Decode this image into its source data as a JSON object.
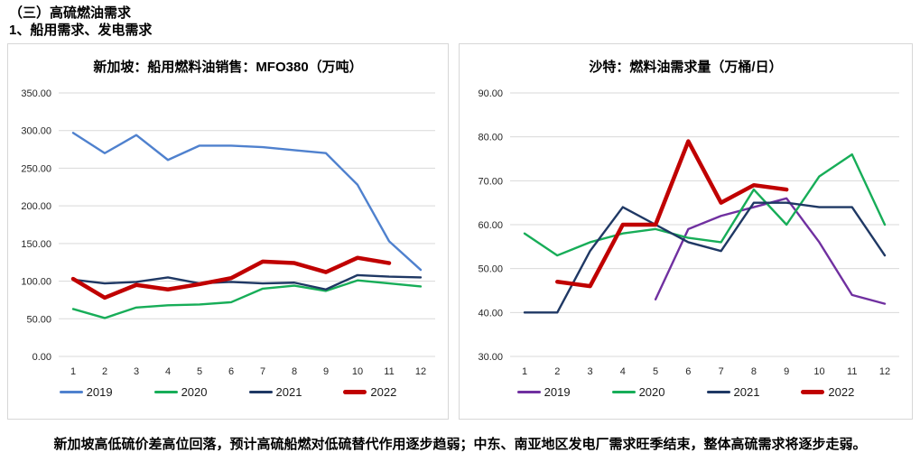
{
  "page": {
    "heading1": "（三）高硫燃油需求",
    "heading2": "1、船用需求、发电需求",
    "footer": "新加坡高低硫价差高位回落，预计高硫船燃对低硫替代作用逐步趋弱；中东、南亚地区发电厂需求旺季结束，整体高硫需求将逐步走弱。"
  },
  "colors": {
    "blue_2019_left": "#4F81CE",
    "purple_2019_right": "#7030A0",
    "green_2020": "#17AD58",
    "navy_2021": "#1F3864",
    "red_2022": "#C00000",
    "grid": "#d9d9d9"
  },
  "chart_data": [
    {
      "type": "line",
      "title": "新加坡：船用燃料油销售：MFO380（万吨）",
      "xlabel": "",
      "ylabel": "",
      "x": [
        1,
        2,
        3,
        4,
        5,
        6,
        7,
        8,
        9,
        10,
        11,
        12
      ],
      "ylim": [
        0,
        350
      ],
      "ystep": 50,
      "ytick_decimals": 2,
      "grid": true,
      "legend_position": "bottom",
      "series": [
        {
          "name": "2019",
          "color": "#4F81CE",
          "thick": false,
          "values": [
            297,
            270,
            294,
            261,
            280,
            280,
            278,
            274,
            270,
            228,
            153,
            115
          ]
        },
        {
          "name": "2020",
          "color": "#17AD58",
          "thick": false,
          "values": [
            63,
            51,
            65,
            68,
            69,
            72,
            90,
            94,
            87,
            101,
            97,
            93
          ]
        },
        {
          "name": "2021",
          "color": "#1F3864",
          "thick": false,
          "values": [
            102,
            97,
            99,
            105,
            97,
            99,
            97,
            98,
            89,
            108,
            106,
            105
          ]
        },
        {
          "name": "2022",
          "color": "#C00000",
          "thick": true,
          "values": [
            103,
            78,
            95,
            89,
            96,
            104,
            126,
            124,
            112,
            131,
            124,
            null
          ]
        }
      ]
    },
    {
      "type": "line",
      "title": "沙特：燃料油需求量（万桶/日）",
      "xlabel": "",
      "ylabel": "",
      "x": [
        1,
        2,
        3,
        4,
        5,
        6,
        7,
        8,
        9,
        10,
        11,
        12
      ],
      "ylim": [
        30,
        90
      ],
      "ystep": 10,
      "ytick_decimals": 2,
      "grid": true,
      "legend_position": "bottom",
      "series": [
        {
          "name": "2019",
          "color": "#7030A0",
          "thick": false,
          "values": [
            null,
            null,
            null,
            null,
            43,
            59,
            62,
            64,
            66,
            56,
            44,
            42
          ]
        },
        {
          "name": "2020",
          "color": "#17AD58",
          "thick": false,
          "values": [
            58,
            53,
            56,
            58,
            59,
            57,
            56,
            68,
            60,
            71,
            76,
            60
          ]
        },
        {
          "name": "2021",
          "color": "#1F3864",
          "thick": false,
          "values": [
            40,
            40,
            54,
            64,
            60,
            56,
            54,
            65,
            65,
            64,
            64,
            53
          ]
        },
        {
          "name": "2022",
          "color": "#C00000",
          "thick": true,
          "values": [
            null,
            47,
            46,
            60,
            60,
            79,
            65,
            69,
            68,
            null,
            null,
            null
          ]
        }
      ]
    }
  ]
}
